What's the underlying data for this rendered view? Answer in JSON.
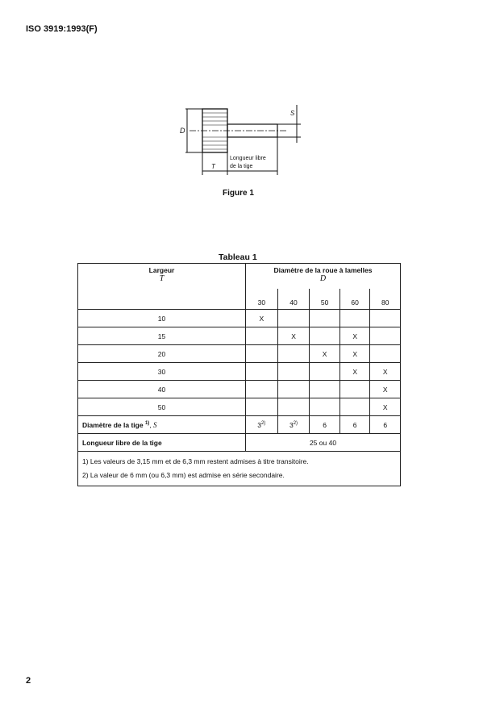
{
  "header": {
    "doc_id": "ISO 3919:1993(F)"
  },
  "figure": {
    "caption": "Figure 1",
    "labels": {
      "D": "D",
      "S": "S",
      "T": "T",
      "free_length_1": "Longueur libre",
      "free_length_2": "de la tige"
    }
  },
  "table": {
    "caption": "Tableau 1",
    "col1_header": "Largeur",
    "col1_symbol": "T",
    "col2_header": "Diamètre de la roue à lamelles",
    "col2_symbol": "D",
    "diameters": [
      "30",
      "40",
      "50",
      "60",
      "80"
    ],
    "rows": [
      {
        "width": "10",
        "marks": [
          "X",
          "",
          "",
          "",
          ""
        ]
      },
      {
        "width": "15",
        "marks": [
          "",
          "X",
          "",
          "X",
          ""
        ]
      },
      {
        "width": "20",
        "marks": [
          "",
          "",
          "X",
          "X",
          ""
        ]
      },
      {
        "width": "30",
        "marks": [
          "",
          "",
          "",
          "X",
          "X"
        ]
      },
      {
        "width": "40",
        "marks": [
          "",
          "",
          "",
          "",
          "X"
        ]
      },
      {
        "width": "50",
        "marks": [
          "",
          "",
          "",
          "",
          "X"
        ]
      }
    ],
    "shank_diameter": {
      "label": "Diamètre de la tige",
      "note_ref": "1)",
      "symbol": "S",
      "values": [
        "3",
        "3",
        "6",
        "6",
        "6"
      ],
      "value_notes": [
        "2)",
        "2)",
        "",
        "",
        ""
      ]
    },
    "free_length": {
      "label": "Longueur libre de la tige",
      "value": "25 ou 40"
    },
    "notes": [
      "1)  Les valeurs de 3,15 mm et de 6,3 mm restent admises à titre transitoire.",
      "2)  La valeur de 6 mm (ou 6,3 mm) est admise en série secondaire."
    ]
  },
  "footer": {
    "page_number": "2"
  }
}
